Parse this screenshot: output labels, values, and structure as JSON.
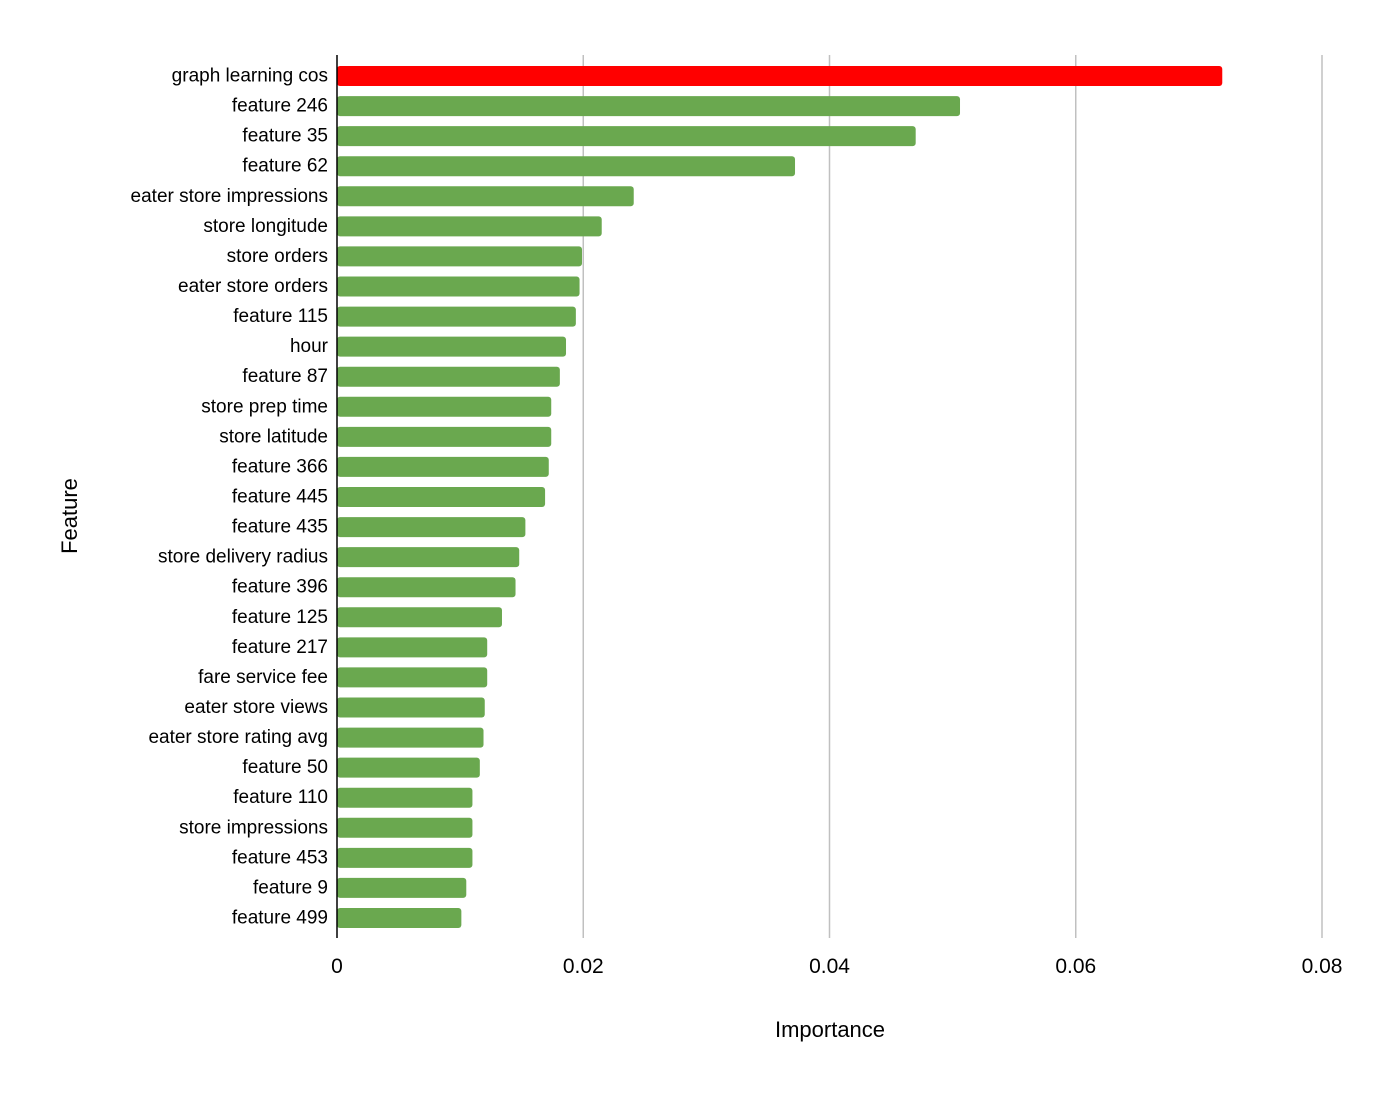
{
  "chart_data": {
    "type": "bar",
    "orientation": "horizontal",
    "title": "",
    "xlabel": "Importance",
    "ylabel": "Feature",
    "xlim": [
      0,
      0.08
    ],
    "x_ticks": [
      0,
      0.02,
      0.04,
      0.06,
      0.08
    ],
    "x_tick_labels": [
      "0",
      "0.02",
      "0.04",
      "0.06",
      "0.08"
    ],
    "grid": "vertical",
    "legend": "none",
    "colors": {
      "highlight": "#ff0000",
      "default": "#6aa84f",
      "grid": "#c0c0c0",
      "axis": "#000000"
    },
    "categories": [
      "graph learning cos",
      "feature 246",
      "feature 35",
      "feature 62",
      "eater store impressions",
      "store longitude",
      "store orders",
      "eater store orders",
      "feature 115",
      "hour",
      "feature 87",
      "store prep time",
      "store latitude",
      "feature 366",
      "feature 445",
      "feature 435",
      "store delivery radius",
      "feature 396",
      "feature 125",
      "feature 217",
      "fare service fee",
      "eater store views",
      "eater store rating avg",
      "feature 50",
      "feature 110",
      "store impressions",
      "feature 453",
      "feature 9",
      "feature 499"
    ],
    "values": [
      0.0719,
      0.0506,
      0.047,
      0.0372,
      0.0241,
      0.0215,
      0.0199,
      0.0197,
      0.0194,
      0.0186,
      0.0181,
      0.0174,
      0.0174,
      0.0172,
      0.0169,
      0.0153,
      0.0148,
      0.0145,
      0.0134,
      0.0122,
      0.0122,
      0.012,
      0.0119,
      0.0116,
      0.011,
      0.011,
      0.011,
      0.0105,
      0.0101
    ],
    "highlight_index": 0
  }
}
